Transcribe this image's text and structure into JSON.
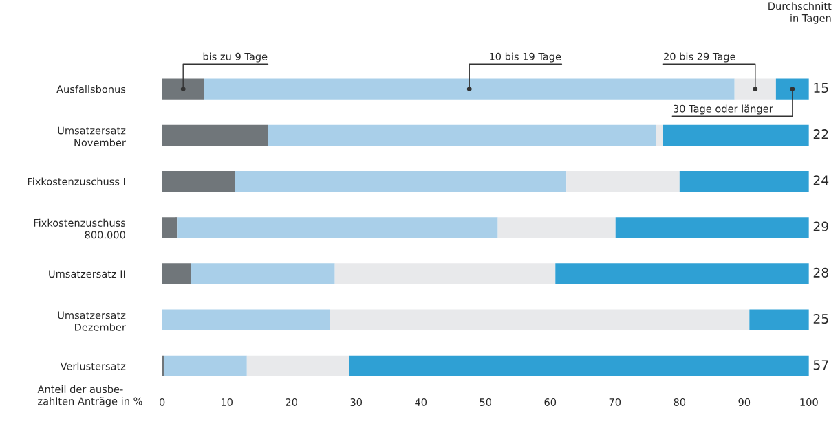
{
  "chart_data": {
    "type": "bar",
    "orientation": "horizontal",
    "stacked": true,
    "legend": false,
    "grid": false,
    "categories": [
      "Ausfallsbonus",
      "Umsatzersatz\nNovember",
      "Fixkostenzuschuss I",
      "Fixkostenzuschuss\n800.000",
      "Umsatzersatz II",
      "Umsatzersatz\nDezember",
      "Verlustersatz"
    ],
    "series": [
      {
        "name": "bis zu 9 Tage",
        "color": "#70767a",
        "values": [
          6.5,
          16.4,
          11.3,
          2.4,
          4.4,
          0,
          0.3
        ]
      },
      {
        "name": "10 bis 19 Tage",
        "color": "#a9cfe9",
        "values": [
          82,
          60,
          51.2,
          49.5,
          22.3,
          25.9,
          12.8
        ]
      },
      {
        "name": "20 bis 29 Tage",
        "color": "#e8e9eb",
        "values": [
          6.4,
          1,
          17.5,
          18.2,
          34.1,
          64.9,
          15.8
        ]
      },
      {
        "name": "30 Tage oder länger",
        "color": "#2fa0d4",
        "values": [
          5.1,
          22.6,
          20,
          29.9,
          39.2,
          9.2,
          71.1
        ]
      }
    ],
    "xlim": [
      0,
      100
    ],
    "xticks": [
      0,
      10,
      20,
      30,
      40,
      50,
      60,
      70,
      80,
      90,
      100
    ],
    "xlabel": "Anteil der ausbe-\nzahlten Anträge in %",
    "annotations": [
      "Durchschnitt\nin Tagen",
      "15",
      "22",
      "24",
      "29",
      "28",
      "25",
      "57"
    ]
  }
}
